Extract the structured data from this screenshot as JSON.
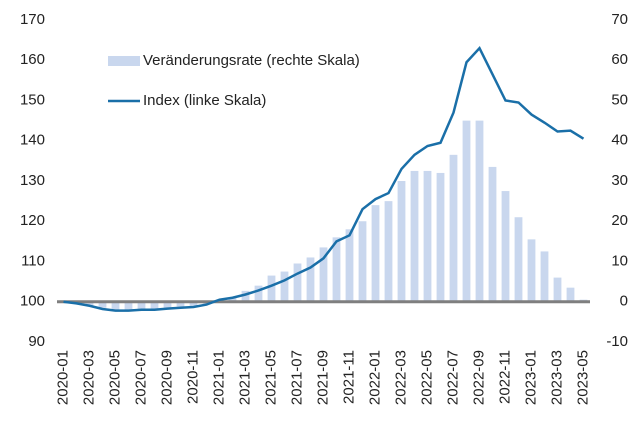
{
  "chart_data": {
    "type": "bar_line",
    "categories": [
      "2020-01",
      null,
      "2020-03",
      null,
      "2020-05",
      null,
      "2020-07",
      null,
      "2020-09",
      null,
      "2020-11",
      null,
      "2021-01",
      null,
      "2021-03",
      null,
      "2021-05",
      null,
      "2021-07",
      null,
      "2021-09",
      null,
      "2021-11",
      null,
      "2022-01",
      null,
      "2022-03",
      null,
      "2022-05",
      null,
      "2022-07",
      null,
      "2022-09",
      null,
      "2022-11",
      null,
      "2023-01",
      null,
      "2023-03",
      null,
      "2023-05"
    ],
    "series": [
      {
        "name": "Veränderungsrate (rechte Skala)",
        "type": "bar",
        "axis": "y2",
        "color": "#c9d7ee",
        "values": [
          0,
          -0.3,
          -1,
          -1.5,
          -2,
          -2,
          -2,
          -1.8,
          -1.5,
          -1.2,
          -1,
          -0.5,
          0.5,
          1,
          2.7,
          4,
          6.5,
          7.5,
          9.5,
          11,
          13.5,
          16,
          18,
          20,
          24,
          25,
          30,
          32.5,
          32.5,
          32,
          36.5,
          45,
          45,
          33.5,
          27.5,
          21,
          15.5,
          12.5,
          6,
          3.5,
          0.5
        ]
      },
      {
        "name": "Index (linke Skala)",
        "type": "line",
        "axis": "y",
        "color": "#1a6fa8",
        "values": [
          100,
          99.6,
          99.0,
          98.2,
          97.8,
          97.8,
          98.0,
          98.0,
          98.3,
          98.5,
          98.7,
          99.3,
          100.5,
          101.0,
          101.8,
          102.8,
          104,
          105.3,
          107,
          108.5,
          110.8,
          115,
          116.5,
          123,
          125.5,
          127,
          133,
          136.5,
          138.7,
          139.5,
          147,
          159.5,
          163,
          156.5,
          150,
          149.5,
          146.5,
          144.5,
          142.3,
          142.5,
          140.5
        ]
      }
    ],
    "ylim": [
      90,
      170
    ],
    "yticks": [
      90,
      100,
      110,
      120,
      130,
      140,
      150,
      160,
      170
    ],
    "y2lim": [
      -10,
      70
    ],
    "y2ticks": [
      -10,
      0,
      10,
      20,
      30,
      40,
      50,
      60,
      70
    ]
  }
}
